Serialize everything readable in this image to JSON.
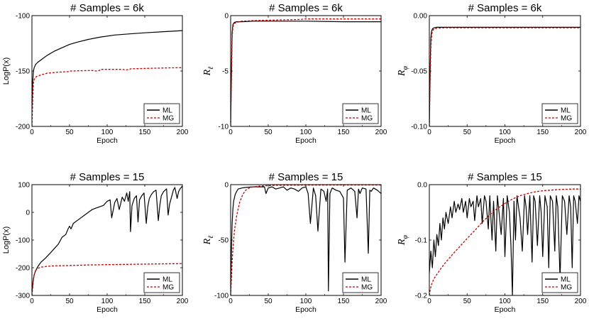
{
  "colors": {
    "ML": "#000000",
    "MG": "#cc0000"
  },
  "chart_data": [
    {
      "type": "line",
      "title": "# Samples = 6k",
      "xlabel": "Epoch",
      "ylabel": "LogP(x)",
      "ylabel_sub": "",
      "xlim": [
        0,
        200
      ],
      "ylim": [
        -200,
        -100
      ],
      "xticks": [
        0,
        50,
        100,
        150,
        200
      ],
      "yticks": [
        -200,
        -150,
        -100
      ],
      "ytick_labels": [
        "-200",
        "-150",
        "-100"
      ],
      "legend": [
        "ML",
        "MG"
      ],
      "legend_position": "bottom-right",
      "series": [
        {
          "name": "ML",
          "x": [
            0,
            1,
            2,
            3,
            5,
            8,
            12,
            20,
            30,
            40,
            50,
            60,
            75,
            90,
            110,
            130,
            150,
            175,
            200
          ],
          "y": [
            -185,
            -160,
            -150,
            -147,
            -144,
            -142,
            -140,
            -136,
            -132,
            -129,
            -126,
            -124,
            -121.5,
            -119.5,
            -117.5,
            -116.5,
            -115.5,
            -114.5,
            -113.5
          ]
        },
        {
          "name": "MG",
          "x": [
            0,
            1,
            2,
            4,
            6,
            10,
            20,
            35,
            50,
            51,
            80,
            85,
            90,
            91,
            120,
            125,
            130,
            131,
            160,
            180,
            200
          ],
          "y": [
            -200,
            -175,
            -160,
            -156,
            -155,
            -154,
            -152,
            -151,
            -150.5,
            -150,
            -149.5,
            -150,
            -149.5,
            -148.5,
            -148.5,
            -149,
            -148.5,
            -148,
            -147.5,
            -147.2,
            -147
          ]
        }
      ]
    },
    {
      "type": "line",
      "title": "# Samples = 6k",
      "xlabel": "Epoch",
      "ylabel": "R",
      "ylabel_sub": "ℓ",
      "xlim": [
        0,
        200
      ],
      "ylim": [
        -10,
        0
      ],
      "xticks": [
        0,
        50,
        100,
        150,
        200
      ],
      "yticks": [
        -10,
        -5,
        0
      ],
      "ytick_labels": [
        "-10",
        "-5",
        "0"
      ],
      "legend": [
        "ML",
        "MG"
      ],
      "legend_position": "bottom-right",
      "series": [
        {
          "name": "ML",
          "x": [
            0,
            1,
            2,
            3,
            5,
            8,
            15,
            30,
            60,
            100,
            150,
            200
          ],
          "y": [
            -10,
            -5,
            -1.5,
            -0.8,
            -0.6,
            -0.55,
            -0.55,
            -0.5,
            -0.5,
            -0.5,
            -0.55,
            -0.55
          ]
        },
        {
          "name": "MG",
          "x": [
            0,
            1,
            2,
            3,
            5,
            8,
            15,
            30,
            60,
            90,
            100,
            150,
            200
          ],
          "y": [
            -10,
            -6,
            -2,
            -1,
            -0.7,
            -0.6,
            -0.5,
            -0.45,
            -0.4,
            -0.35,
            -0.3,
            -0.3,
            -0.3
          ]
        }
      ]
    },
    {
      "type": "line",
      "title": "# Samples = 6k",
      "xlabel": "Epoch",
      "ylabel": "R",
      "ylabel_sub": "φ",
      "xlim": [
        0,
        200
      ],
      "ylim": [
        -0.1,
        0
      ],
      "xticks": [
        0,
        50,
        100,
        150,
        200
      ],
      "yticks": [
        -0.1,
        -0.05,
        0
      ],
      "ytick_labels": [
        "-0.10",
        "-0.05",
        "0.00"
      ],
      "legend": [
        "ML",
        "MG"
      ],
      "legend_position": "bottom-right",
      "series": [
        {
          "name": "ML",
          "x": [
            0,
            1,
            2,
            3,
            4,
            6,
            10,
            20,
            50,
            100,
            150,
            200
          ],
          "y": [
            -0.1,
            -0.05,
            -0.02,
            -0.014,
            -0.012,
            -0.011,
            -0.0105,
            -0.0105,
            -0.0105,
            -0.0105,
            -0.0105,
            -0.0105
          ]
        },
        {
          "name": "MG",
          "x": [
            0,
            1,
            2,
            3,
            4,
            6,
            10,
            20,
            50,
            100,
            150,
            200
          ],
          "y": [
            -0.1,
            -0.06,
            -0.03,
            -0.018,
            -0.014,
            -0.012,
            -0.0115,
            -0.011,
            -0.011,
            -0.011,
            -0.011,
            -0.011
          ]
        }
      ]
    },
    {
      "type": "line",
      "title": "# Samples = 15",
      "xlabel": "Epoch",
      "ylabel": "LogP(x)",
      "ylabel_sub": "",
      "xlim": [
        0,
        200
      ],
      "ylim": [
        -300,
        100
      ],
      "xticks": [
        0,
        50,
        100,
        150,
        200
      ],
      "yticks": [
        -300,
        -200,
        -100,
        0,
        100
      ],
      "ytick_labels": [
        "-300",
        "-200",
        "-100",
        "0",
        "100"
      ],
      "legend": [
        "ML",
        "MG"
      ],
      "legend_position": "bottom-right",
      "series": [
        {
          "name": "ML",
          "x": [
            0,
            1,
            2,
            3,
            5,
            8,
            12,
            18,
            25,
            30,
            35,
            38,
            40,
            45,
            48,
            50,
            52,
            55,
            60,
            65,
            70,
            75,
            80,
            85,
            90,
            95,
            100,
            104,
            106,
            110,
            113,
            116,
            120,
            123,
            126,
            128,
            130,
            131,
            133,
            136,
            139,
            141,
            143,
            146,
            149,
            152,
            154,
            156,
            159,
            162,
            165,
            168,
            170,
            172,
            175,
            179,
            181,
            183,
            186,
            188,
            190,
            193,
            195,
            197,
            200
          ],
          "y": [
            -290,
            -260,
            -240,
            -225,
            -210,
            -195,
            -180,
            -165,
            -145,
            -130,
            -115,
            -100,
            -90,
            -80,
            -60,
            -50,
            -60,
            -40,
            -30,
            -20,
            -10,
            0,
            10,
            15,
            20,
            25,
            40,
            45,
            -20,
            35,
            50,
            10,
            55,
            40,
            70,
            40,
            75,
            -70,
            25,
            50,
            60,
            -35,
            45,
            60,
            70,
            -40,
            20,
            50,
            65,
            75,
            80,
            -30,
            25,
            60,
            75,
            85,
            -10,
            30,
            60,
            80,
            90,
            50,
            75,
            85,
            95
          ]
        },
        {
          "name": "MG",
          "x": [
            0,
            1,
            2,
            3,
            5,
            8,
            12,
            20,
            30,
            50,
            75,
            100,
            125,
            150,
            175,
            200
          ],
          "y": [
            -300,
            -270,
            -245,
            -225,
            -210,
            -202,
            -198,
            -195,
            -193,
            -192,
            -190,
            -189,
            -188,
            -187,
            -186,
            -185
          ]
        }
      ]
    },
    {
      "type": "line",
      "title": "# Samples = 15",
      "xlabel": "Epoch",
      "ylabel": "R",
      "ylabel_sub": "ℓ",
      "xlim": [
        0,
        200
      ],
      "ylim": [
        -100,
        0
      ],
      "xticks": [
        0,
        50,
        100,
        150,
        200
      ],
      "yticks": [
        -100,
        -50,
        0
      ],
      "ytick_labels": [
        "-100",
        "-50",
        "0"
      ],
      "legend": [
        "ML",
        "MG"
      ],
      "legend_position": "bottom-right",
      "series": [
        {
          "name": "ML",
          "x": [
            0,
            1,
            2,
            3,
            4,
            6,
            8,
            10,
            15,
            20,
            30,
            40,
            45,
            47,
            50,
            55,
            60,
            65,
            70,
            75,
            80,
            85,
            90,
            95,
            100,
            103,
            106,
            110,
            113,
            116,
            120,
            124,
            127,
            129,
            130,
            132,
            135,
            140,
            145,
            150,
            152,
            155,
            160,
            165,
            168,
            170,
            172,
            175,
            180,
            183,
            185,
            187,
            190,
            195,
            200
          ],
          "y": [
            -100,
            -60,
            -35,
            -22,
            -15,
            -9,
            -6,
            -4,
            -3,
            -2.5,
            -2,
            -2,
            -2,
            -8,
            -3,
            -2,
            -4,
            -3,
            -2,
            -5,
            -3,
            -4,
            -6,
            -3,
            -2,
            -8,
            -35,
            -3,
            -10,
            -42,
            -4,
            -6,
            -15,
            -4,
            -96,
            -8,
            -3,
            -5,
            -6,
            -12,
            -70,
            -5,
            -3,
            -6,
            -30,
            -4,
            -8,
            -3,
            -4,
            -62,
            -5,
            -6,
            -3,
            -5,
            -8
          ]
        },
        {
          "name": "MG",
          "x": [
            0,
            1,
            2,
            3,
            5,
            8,
            12,
            16,
            20,
            25,
            30,
            40,
            60,
            100,
            150,
            200
          ],
          "y": [
            -100,
            -85,
            -70,
            -58,
            -42,
            -28,
            -16,
            -9,
            -5,
            -3,
            -2,
            -1.2,
            -0.6,
            -0.4,
            -0.3,
            -0.3
          ]
        }
      ]
    },
    {
      "type": "line",
      "title": "# Samples = 15",
      "xlabel": "Epoch",
      "ylabel": "R",
      "ylabel_sub": "φ",
      "xlim": [
        0,
        200
      ],
      "ylim": [
        -0.2,
        0
      ],
      "xticks": [
        0,
        50,
        100,
        150,
        200
      ],
      "yticks": [
        -0.2,
        -0.1,
        0
      ],
      "ytick_labels": [
        "-0.2",
        "-0.1",
        "0.0"
      ],
      "legend": [
        "ML",
        "MG"
      ],
      "legend_position": "bottom-right",
      "series": [
        {
          "name": "ML",
          "x": [
            0,
            2,
            4,
            6,
            8,
            10,
            12,
            14,
            16,
            18,
            20,
            22,
            25,
            28,
            30,
            33,
            35,
            38,
            40,
            43,
            45,
            48,
            50,
            53,
            55,
            58,
            60,
            63,
            65,
            68,
            70,
            73,
            75,
            78,
            80,
            83,
            85,
            88,
            90,
            93,
            95,
            98,
            100,
            103,
            106,
            108,
            110,
            112,
            114,
            116,
            120,
            123,
            126,
            128,
            130,
            133,
            136,
            138,
            140,
            143,
            146,
            148,
            150,
            153,
            156,
            158,
            160,
            163,
            166,
            168,
            170,
            173,
            176,
            179,
            182,
            185,
            187,
            189,
            191,
            193,
            196,
            198,
            200
          ],
          "y": [
            -0.16,
            -0.12,
            -0.15,
            -0.1,
            -0.13,
            -0.09,
            -0.11,
            -0.07,
            -0.1,
            -0.06,
            -0.08,
            -0.05,
            -0.07,
            -0.04,
            -0.06,
            -0.03,
            -0.05,
            -0.035,
            -0.045,
            -0.025,
            -0.05,
            -0.03,
            -0.06,
            -0.025,
            -0.04,
            -0.03,
            -0.065,
            -0.02,
            -0.04,
            -0.025,
            -0.07,
            -0.02,
            -0.03,
            -0.08,
            -0.02,
            -0.1,
            -0.03,
            -0.12,
            -0.02,
            -0.06,
            -0.09,
            -0.025,
            -0.13,
            -0.02,
            -0.05,
            -0.11,
            -0.2,
            -0.03,
            -0.1,
            -0.02,
            -0.06,
            -0.12,
            -0.02,
            -0.04,
            -0.09,
            -0.02,
            -0.14,
            -0.02,
            -0.03,
            -0.11,
            -0.02,
            -0.05,
            -0.13,
            -0.02,
            -0.04,
            -0.15,
            -0.02,
            -0.03,
            -0.12,
            -0.02,
            -0.04,
            -0.17,
            -0.02,
            -0.03,
            -0.09,
            -0.02,
            -0.04,
            -0.15,
            -0.02,
            -0.03,
            -0.07,
            -0.02,
            -0.03
          ]
        },
        {
          "name": "MG",
          "x": [
            0,
            1,
            3,
            6,
            10,
            15,
            20,
            30,
            40,
            50,
            60,
            70,
            80,
            90,
            100,
            110,
            120,
            130,
            140,
            150,
            160,
            170,
            180,
            190,
            200
          ],
          "y": [
            -0.2,
            -0.19,
            -0.18,
            -0.17,
            -0.162,
            -0.152,
            -0.143,
            -0.127,
            -0.112,
            -0.097,
            -0.083,
            -0.068,
            -0.054,
            -0.043,
            -0.034,
            -0.026,
            -0.02,
            -0.016,
            -0.013,
            -0.011,
            -0.01,
            -0.009,
            -0.0085,
            -0.008,
            -0.008
          ]
        }
      ]
    }
  ]
}
